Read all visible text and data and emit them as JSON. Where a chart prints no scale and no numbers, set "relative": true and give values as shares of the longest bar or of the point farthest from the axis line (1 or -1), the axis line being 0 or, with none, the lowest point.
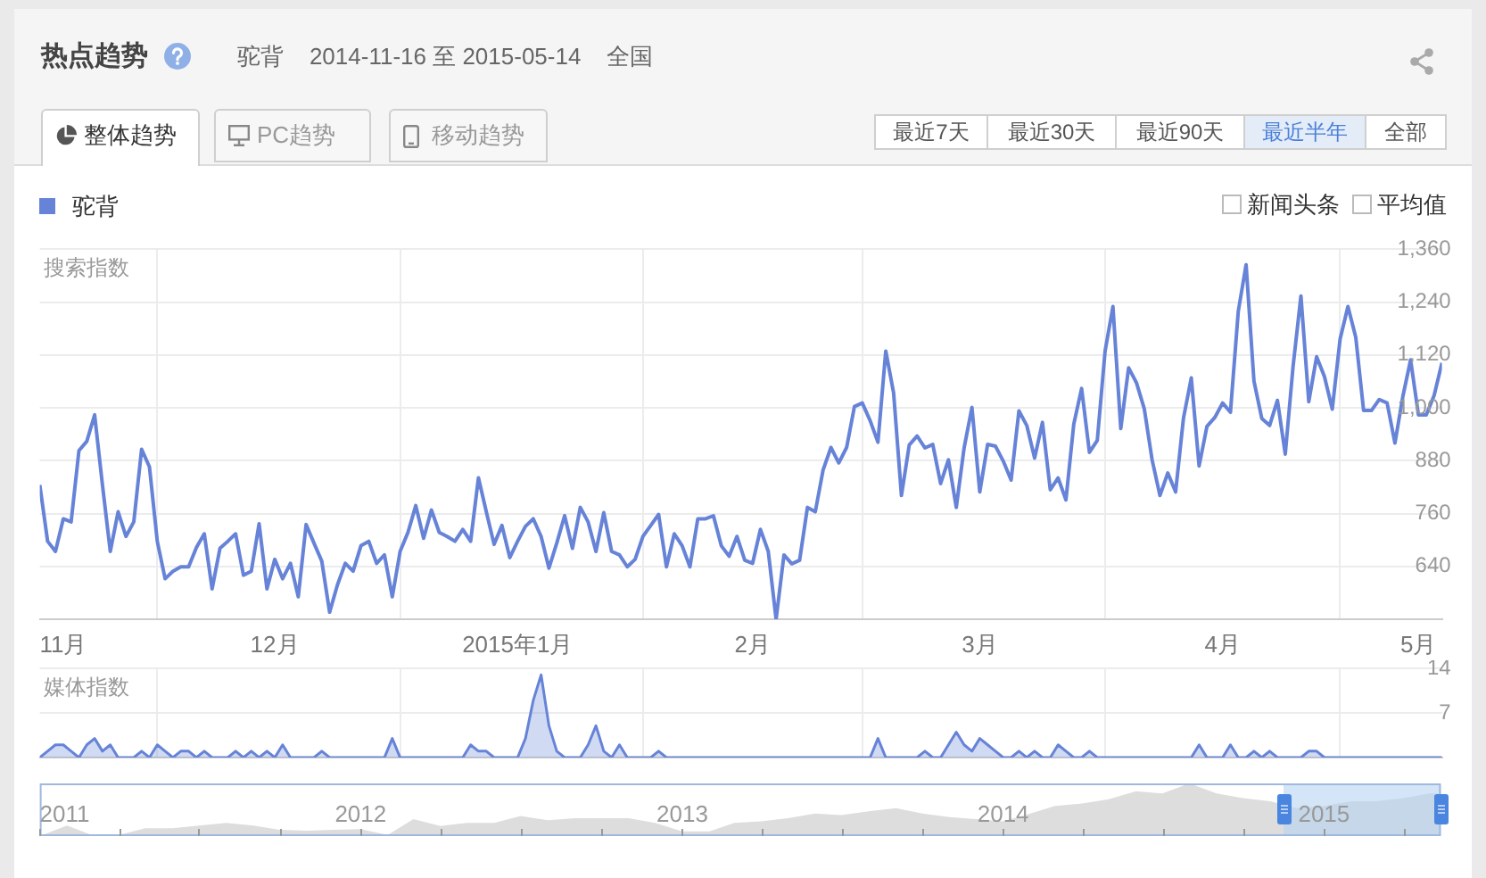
{
  "chart_data": [
    {
      "type": "line",
      "title": "热点趋势",
      "subtitle": "驼背    2014-11-16 至 2015-05-14    全国",
      "annotations": [
        "整体趋势",
        "PC趋势",
        "移动趋势",
        "最近7天",
        "最近30天",
        "最近90天",
        "最近半年",
        "全部",
        "新闻头条",
        "平均值"
      ],
      "legend": "top left",
      "ylabel": "搜索指数",
      "grid": true,
      "x": [
        "2014-11-16",
        "2014-11-17",
        "2014-11-18",
        "2014-11-19",
        "2014-11-20",
        "2014-11-21",
        "2014-11-22",
        "2014-11-23",
        "2014-11-24",
        "2014-11-25",
        "2014-11-26",
        "2014-11-27",
        "2014-11-28",
        "2014-11-29",
        "2014-11-30",
        "2014-12-01",
        "2014-12-02",
        "2014-12-03",
        "2014-12-04",
        "2014-12-05",
        "2014-12-06",
        "2014-12-07",
        "2014-12-08",
        "2014-12-09",
        "2014-12-10",
        "2014-12-11",
        "2014-12-12",
        "2014-12-13",
        "2014-12-14",
        "2014-12-15",
        "2014-12-16",
        "2014-12-17",
        "2014-12-18",
        "2014-12-19",
        "2014-12-20",
        "2014-12-21",
        "2014-12-22",
        "2014-12-23",
        "2014-12-24",
        "2014-12-25",
        "2014-12-26",
        "2014-12-27",
        "2014-12-28",
        "2014-12-29",
        "2014-12-30",
        "2014-12-31",
        "2015-01-01",
        "2015-01-02",
        "2015-01-03",
        "2015-01-04",
        "2015-01-05",
        "2015-01-06",
        "2015-01-07",
        "2015-01-08",
        "2015-01-09",
        "2015-01-10",
        "2015-01-11",
        "2015-01-12",
        "2015-01-13",
        "2015-01-14",
        "2015-01-15",
        "2015-01-16",
        "2015-01-17",
        "2015-01-18",
        "2015-01-19",
        "2015-01-20",
        "2015-01-21",
        "2015-01-22",
        "2015-01-23",
        "2015-01-24",
        "2015-01-25",
        "2015-01-26",
        "2015-01-27",
        "2015-01-28",
        "2015-01-29",
        "2015-01-30",
        "2015-01-31",
        "2015-02-01",
        "2015-02-02",
        "2015-02-03",
        "2015-02-04",
        "2015-02-05",
        "2015-02-06",
        "2015-02-07",
        "2015-02-08",
        "2015-02-09",
        "2015-02-10",
        "2015-02-11",
        "2015-02-12",
        "2015-02-13",
        "2015-02-14",
        "2015-02-15",
        "2015-02-16",
        "2015-02-17",
        "2015-02-18",
        "2015-02-19",
        "2015-02-20",
        "2015-02-21",
        "2015-02-22",
        "2015-02-23",
        "2015-02-24",
        "2015-02-25",
        "2015-02-26",
        "2015-02-27",
        "2015-02-28",
        "2015-03-01",
        "2015-03-02",
        "2015-03-03",
        "2015-03-04",
        "2015-03-05",
        "2015-03-06",
        "2015-03-07",
        "2015-03-08",
        "2015-03-09",
        "2015-03-10",
        "2015-03-11",
        "2015-03-12",
        "2015-03-13",
        "2015-03-14",
        "2015-03-15",
        "2015-03-16",
        "2015-03-17",
        "2015-03-18",
        "2015-03-19",
        "2015-03-20",
        "2015-03-21",
        "2015-03-22",
        "2015-03-23",
        "2015-03-24",
        "2015-03-25",
        "2015-03-26",
        "2015-03-27",
        "2015-03-28",
        "2015-03-29",
        "2015-03-30",
        "2015-03-31",
        "2015-04-01",
        "2015-04-02",
        "2015-04-03",
        "2015-04-04",
        "2015-04-05",
        "2015-04-06",
        "2015-04-07",
        "2015-04-08",
        "2015-04-09",
        "2015-04-10",
        "2015-04-11",
        "2015-04-12",
        "2015-04-13",
        "2015-04-14",
        "2015-04-15",
        "2015-04-16",
        "2015-04-17",
        "2015-04-18",
        "2015-04-19",
        "2015-04-20",
        "2015-04-21",
        "2015-04-22",
        "2015-04-23",
        "2015-04-24",
        "2015-04-25",
        "2015-04-26",
        "2015-04-27",
        "2015-04-28",
        "2015-04-29",
        "2015-04-30",
        "2015-05-01",
        "2015-05-02",
        "2015-05-03",
        "2015-05-04",
        "2015-05-05",
        "2015-05-06",
        "2015-05-07",
        "2015-05-08",
        "2015-05-09",
        "2015-05-10",
        "2015-05-11",
        "2015-05-12",
        "2015-05-13",
        "2015-05-14"
      ],
      "xlim": [
        "2014-11-16",
        "2015-05-14"
      ],
      "xticks": [
        {
          "value": "2014-11-19",
          "label": "11月"
        },
        {
          "value": "2014-12-01",
          "label": null
        },
        {
          "value": "2014-12-16",
          "label": "12月"
        },
        {
          "value": "2015-01-01",
          "label": null
        },
        {
          "value": "2015-01-16",
          "label": "2015年1月"
        },
        {
          "value": "2015-02-01",
          "label": null
        },
        {
          "value": "2015-02-15",
          "label": "2月"
        },
        {
          "value": "2015-03-01",
          "label": null
        },
        {
          "value": "2015-03-16",
          "label": "3月"
        },
        {
          "value": "2015-04-01",
          "label": null
        },
        {
          "value": "2015-04-16",
          "label": "4月"
        },
        {
          "value": "2015-05-01",
          "label": null
        },
        {
          "value": "2015-05-11",
          "label": "5月"
        }
      ],
      "ylim": [
        520,
        1360
      ],
      "yticks": [
        {
          "value": 520,
          "label": null
        },
        640,
        760,
        880,
        {
          "value": 1000,
          "label": "1,000"
        },
        {
          "value": 1120,
          "label": "1,120"
        },
        {
          "value": 1240,
          "label": "1,240"
        },
        {
          "value": 1360,
          "label": "1,360"
        }
      ],
      "series": [
        {
          "name": "驼背",
          "color": "#6683d8",
          "values": [
            825,
            697,
            674,
            748,
            741,
            903,
            924,
            984,
            825,
            674,
            764,
            708,
            741,
            906,
            866,
            697,
            612,
            629,
            639,
            639,
            683,
            714,
            589,
            681,
            697,
            714,
            620,
            629,
            737,
            589,
            656,
            612,
            647,
            571,
            735,
            693,
            652,
            536,
            598,
            647,
            629,
            687,
            697,
            647,
            666,
            571,
            674,
            717,
            778,
            704,
            768,
            717,
            708,
            697,
            724,
            697,
            841,
            764,
            690,
            733,
            660,
            697,
            731,
            748,
            708,
            636,
            693,
            755,
            681,
            774,
            741,
            674,
            762,
            674,
            666,
            639,
            656,
            708,
            733,
            758,
            639,
            714,
            687,
            639,
            748,
            748,
            755,
            687,
            663,
            708,
            654,
            647,
            724,
            674,
            520,
            666,
            646,
            654,
            774,
            764,
            859,
            910,
            875,
            910,
            1003,
            1011,
            971,
            922,
            1129,
            1034,
            801,
            916,
            936,
            909,
            917,
            828,
            882,
            774,
            909,
            1001,
            809,
            917,
            913,
            879,
            836,
            993,
            960,
            886,
            967,
            814,
            841,
            791,
            963,
            1044,
            899,
            926,
            1129,
            1230,
            953,
            1091,
            1057,
            998,
            882,
            801,
            852,
            809,
            976,
            1068,
            868,
            958,
            978,
            1011,
            990,
            1219,
            1325,
            1061,
            976,
            960,
            1017,
            895,
            1095,
            1254,
            1014,
            1116,
            1071,
            997,
            1156,
            1230,
            1160,
            994,
            994,
            1019,
            1011,
            920,
            1025,
            1109,
            984,
            984,
            1028,
            1102
          ]
        }
      ]
    },
    {
      "type": "area",
      "ylabel": "媒体指数",
      "grid": true,
      "tick_labels": "y",
      "x": [
        "2014-11-16",
        "2014-11-17",
        "2014-11-18",
        "2014-11-19",
        "2014-11-20",
        "2014-11-21",
        "2014-11-22",
        "2014-11-23",
        "2014-11-24",
        "2014-11-25",
        "2014-11-26",
        "2014-11-27",
        "2014-11-28",
        "2014-11-29",
        "2014-11-30",
        "2014-12-01",
        "2014-12-02",
        "2014-12-03",
        "2014-12-04",
        "2014-12-05",
        "2014-12-06",
        "2014-12-07",
        "2014-12-08",
        "2014-12-09",
        "2014-12-10",
        "2014-12-11",
        "2014-12-12",
        "2014-12-13",
        "2014-12-14",
        "2014-12-15",
        "2014-12-16",
        "2014-12-17",
        "2014-12-18",
        "2014-12-19",
        "2014-12-20",
        "2014-12-21",
        "2014-12-22",
        "2014-12-23",
        "2014-12-24",
        "2014-12-25",
        "2014-12-26",
        "2014-12-27",
        "2014-12-28",
        "2014-12-29",
        "2014-12-30",
        "2014-12-31",
        "2015-01-01",
        "2015-01-02",
        "2015-01-03",
        "2015-01-04",
        "2015-01-05",
        "2015-01-06",
        "2015-01-07",
        "2015-01-08",
        "2015-01-09",
        "2015-01-10",
        "2015-01-11",
        "2015-01-12",
        "2015-01-13",
        "2015-01-14",
        "2015-01-15",
        "2015-01-16",
        "2015-01-17",
        "2015-01-18",
        "2015-01-19",
        "2015-01-20",
        "2015-01-21",
        "2015-01-22",
        "2015-01-23",
        "2015-01-24",
        "2015-01-25",
        "2015-01-26",
        "2015-01-27",
        "2015-01-28",
        "2015-01-29",
        "2015-01-30",
        "2015-01-31",
        "2015-02-01",
        "2015-02-02",
        "2015-02-03",
        "2015-02-04",
        "2015-02-05",
        "2015-02-06",
        "2015-02-07",
        "2015-02-08",
        "2015-02-09",
        "2015-02-10",
        "2015-02-11",
        "2015-02-12",
        "2015-02-13",
        "2015-02-14",
        "2015-02-15",
        "2015-02-16",
        "2015-02-17",
        "2015-02-18",
        "2015-02-19",
        "2015-02-20",
        "2015-02-21",
        "2015-02-22",
        "2015-02-23",
        "2015-02-24",
        "2015-02-25",
        "2015-02-26",
        "2015-02-27",
        "2015-02-28",
        "2015-03-01",
        "2015-03-02",
        "2015-03-03",
        "2015-03-04",
        "2015-03-05",
        "2015-03-06",
        "2015-03-07",
        "2015-03-08",
        "2015-03-09",
        "2015-03-10",
        "2015-03-11",
        "2015-03-12",
        "2015-03-13",
        "2015-03-14",
        "2015-03-15",
        "2015-03-16",
        "2015-03-17",
        "2015-03-18",
        "2015-03-19",
        "2015-03-20",
        "2015-03-21",
        "2015-03-22",
        "2015-03-23",
        "2015-03-24",
        "2015-03-25",
        "2015-03-26",
        "2015-03-27",
        "2015-03-28",
        "2015-03-29",
        "2015-03-30",
        "2015-03-31",
        "2015-04-01",
        "2015-04-02",
        "2015-04-03",
        "2015-04-04",
        "2015-04-05",
        "2015-04-06",
        "2015-04-07",
        "2015-04-08",
        "2015-04-09",
        "2015-04-10",
        "2015-04-11",
        "2015-04-12",
        "2015-04-13",
        "2015-04-14",
        "2015-04-15",
        "2015-04-16",
        "2015-04-17",
        "2015-04-18",
        "2015-04-19",
        "2015-04-20",
        "2015-04-21",
        "2015-04-22",
        "2015-04-23",
        "2015-04-24",
        "2015-04-25",
        "2015-04-26",
        "2015-04-27",
        "2015-04-28",
        "2015-04-29",
        "2015-04-30",
        "2015-05-01",
        "2015-05-02",
        "2015-05-03",
        "2015-05-04",
        "2015-05-05",
        "2015-05-06",
        "2015-05-07",
        "2015-05-08",
        "2015-05-09",
        "2015-05-10",
        "2015-05-11",
        "2015-05-12",
        "2015-05-13",
        "2015-05-14"
      ],
      "xlim": [
        "2014-11-16",
        "2015-05-14"
      ],
      "xticks": [
        {
          "value": "2014-12-01",
          "label": null
        },
        {
          "value": "2015-01-01",
          "label": null
        },
        {
          "value": "2015-02-01",
          "label": null
        },
        {
          "value": "2015-03-01",
          "label": null
        },
        {
          "value": "2015-04-01",
          "label": null
        },
        {
          "value": "2015-05-01",
          "label": null
        }
      ],
      "ylim": [
        0,
        14
      ],
      "yticks": [
        {
          "value": 0,
          "label": null
        },
        7,
        14
      ],
      "series": [
        {
          "color": "#6683d8",
          "values": [
            0,
            1,
            2,
            2,
            1,
            0,
            2,
            3,
            1,
            2,
            0,
            0,
            0,
            1,
            0,
            2,
            1,
            0,
            1,
            1,
            0,
            1,
            0,
            0,
            0,
            1,
            0,
            1,
            0,
            1,
            0,
            2,
            0,
            0,
            0,
            0,
            1,
            0,
            0,
            0,
            0,
            0,
            0,
            0,
            0,
            3,
            0,
            0,
            0,
            0,
            0,
            0,
            0,
            0,
            0,
            2,
            1,
            1,
            0,
            0,
            0,
            0,
            3,
            9,
            13,
            5,
            1,
            0,
            0,
            0,
            2,
            5,
            1,
            0,
            2,
            0,
            0,
            0,
            0,
            1,
            0,
            0,
            0,
            0,
            0,
            0,
            0,
            0,
            0,
            0,
            0,
            0,
            0,
            0,
            0,
            0,
            0,
            0,
            0,
            0,
            0,
            0,
            0,
            0,
            0,
            0,
            0,
            3,
            0,
            0,
            0,
            0,
            0,
            1,
            0,
            0,
            2,
            4,
            2,
            1,
            3,
            2,
            1,
            0,
            0,
            1,
            0,
            1,
            0,
            0,
            2,
            1,
            0,
            0,
            1,
            0,
            0,
            0,
            0,
            0,
            0,
            0,
            0,
            0,
            0,
            0,
            0,
            0,
            2,
            0,
            0,
            0,
            2,
            0,
            0,
            1,
            0,
            1,
            0,
            0,
            0,
            0,
            1,
            1,
            0,
            0,
            0,
            0,
            0,
            0,
            0,
            0,
            0,
            0,
            0,
            0,
            0,
            0,
            0,
            0
          ]
        }
      ]
    },
    {
      "type": "area",
      "relative": true,
      "tick_labels": "x",
      "x": [
        "2011-01",
        "2011-02",
        "2011-03",
        "2011-04",
        "2011-05",
        "2011-06",
        "2011-07",
        "2011-08",
        "2011-09",
        "2011-10",
        "2011-11",
        "2011-12",
        "2012-01",
        "2012-02",
        "2012-03",
        "2012-04",
        "2012-05",
        "2012-06",
        "2012-07",
        "2012-08",
        "2012-09",
        "2012-10",
        "2012-11",
        "2012-12",
        "2013-01",
        "2013-02",
        "2013-03",
        "2013-04",
        "2013-05",
        "2013-06",
        "2013-07",
        "2013-08",
        "2013-09",
        "2013-10",
        "2013-11",
        "2013-12",
        "2014-01",
        "2014-02",
        "2014-03",
        "2014-04",
        "2014-05",
        "2014-06",
        "2014-07",
        "2014-08",
        "2014-09",
        "2014-10",
        "2014-11",
        "2014-12",
        "2015-01",
        "2015-02",
        "2015-03",
        "2015-04",
        "2015-05",
        "2015-05-14"
      ],
      "xlim": [
        "2011-01-01",
        "2015-05-14"
      ],
      "xticks": [
        {
          "value": "2011-01-01",
          "label": "2011"
        },
        {
          "value": "2011-04-01",
          "label": null
        },
        {
          "value": "2011-07-01",
          "label": null
        },
        {
          "value": "2011-10-01",
          "label": null
        },
        {
          "value": "2012-01-01",
          "label": "2012"
        },
        {
          "value": "2012-04-01",
          "label": null
        },
        {
          "value": "2012-07-01",
          "label": null
        },
        {
          "value": "2012-10-01",
          "label": null
        },
        {
          "value": "2013-01-01",
          "label": "2013"
        },
        {
          "value": "2013-04-01",
          "label": null
        },
        {
          "value": "2013-07-01",
          "label": null
        },
        {
          "value": "2013-10-01",
          "label": null
        },
        {
          "value": "2014-01-01",
          "label": "2014"
        },
        {
          "value": "2014-04-01",
          "label": null
        },
        {
          "value": "2014-07-01",
          "label": null
        },
        {
          "value": "2014-10-01",
          "label": null
        },
        {
          "value": "2015-01-01",
          "label": "2015"
        },
        {
          "value": "2015-04-01",
          "label": null
        }
      ],
      "bands": [
        {
          "axis": "x",
          "from": "2014-11-16",
          "to": "2015-05-14",
          "color": "#b5d3f0"
        }
      ],
      "series": [
        {
          "color": "#dddddd",
          "values": [
            0,
            0.2,
            0.02,
            0.02,
            0.15,
            0.15,
            0.2,
            0.25,
            0.2,
            0.12,
            0.1,
            0.12,
            0.13,
            0.02,
            0.32,
            0.19,
            0.25,
            0.25,
            0.38,
            0.3,
            0.34,
            0.34,
            0.34,
            0.25,
            0.09,
            0.09,
            0.25,
            0.28,
            0.34,
            0.43,
            0.4,
            0.47,
            0.53,
            0.43,
            0.36,
            0.32,
            0.28,
            0.43,
            0.57,
            0.62,
            0.7,
            0.85,
            0.81,
            1,
            0.81,
            0.72,
            0.66,
            0.53,
            0.57,
            0.66,
            0.66,
            0.72,
            0.81,
            0.81
          ]
        }
      ]
    }
  ]
}
